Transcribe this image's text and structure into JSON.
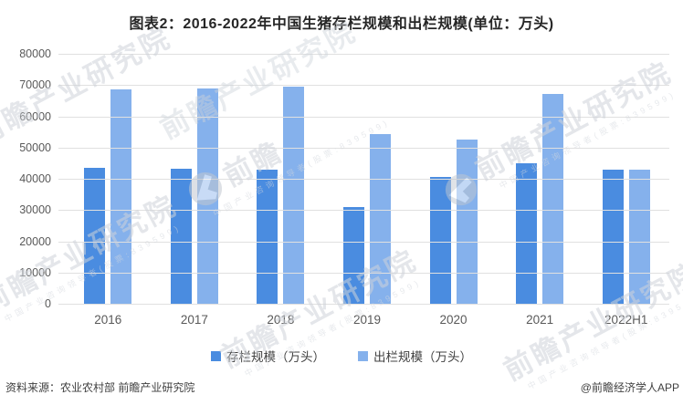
{
  "title": "图表2：2016-2022年中国生猪存栏规模和出栏规模(单位：万头)",
  "chart_data": {
    "type": "bar",
    "title": "图表2：2016-2022年中国生猪存栏规模和出栏规模(单位：万头)",
    "unit": "万头",
    "categories": [
      "2016",
      "2017",
      "2018",
      "2019",
      "2020",
      "2021",
      "2022H1"
    ],
    "series": [
      {
        "name": "存栏规模（万头）",
        "color": "#4a8ce0",
        "values": [
          43500,
          43300,
          42800,
          31000,
          40650,
          44900,
          43000
        ]
      },
      {
        "name": "出栏规模（万头）",
        "color": "#85b1ec",
        "values": [
          68500,
          68900,
          69400,
          54400,
          52700,
          67100,
          43000
        ]
      }
    ],
    "ylim": [
      0,
      80000
    ],
    "ytick_interval": 10000,
    "yticks": [
      80000,
      70000,
      60000,
      50000,
      40000,
      30000,
      20000,
      10000,
      0
    ],
    "grid": true,
    "gridline_color": "#e0e0e0",
    "legend_position": "bottom"
  },
  "footer": {
    "source": "资料来源：农业农村部 前瞻产业研究院",
    "credit": "@前瞻经济学人APP"
  },
  "watermark": {
    "brand": "前瞻",
    "text": "前瞻产业研究院",
    "subtext": "中国产业咨询领导者(股票:839599)"
  }
}
